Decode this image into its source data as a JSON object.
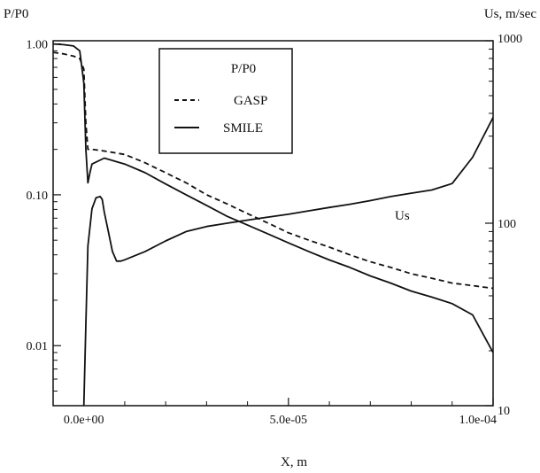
{
  "chart_data": {
    "type": "line",
    "left_axis": {
      "label": "P/P0",
      "scale": "log",
      "range": [
        0.004,
        1.05
      ],
      "ticks": [
        1.0,
        0.1,
        0.01
      ],
      "tick_labels": [
        "1.00",
        "0.10",
        "0.01"
      ]
    },
    "right_axis": {
      "label": "Us, m/sec",
      "scale": "log",
      "range": [
        10,
        1000
      ],
      "ticks": [
        1000,
        100,
        10
      ],
      "tick_labels": [
        "1000",
        "100",
        "10"
      ]
    },
    "x_axis": {
      "label": "X, m",
      "range": [
        -7.5e-06,
        0.0001
      ],
      "ticks": [
        0,
        5e-05,
        0.0001
      ],
      "tick_labels": [
        "0.0e+00",
        "5.0e-05",
        "1.0e-04"
      ]
    },
    "legend": {
      "placement": "top-center",
      "title": "P/P0",
      "entries": [
        {
          "label": "GASP",
          "style": "dashed"
        },
        {
          "label": "SMILE",
          "style": "solid"
        }
      ]
    },
    "annotations": [
      {
        "text": "Us",
        "x": 6e-05,
        "y_right": 160
      }
    ],
    "series": [
      {
        "name": "GASP",
        "axis": "left",
        "style": "dashed",
        "x": [
          -7.5e-06,
          -5e-06,
          -2.5e-06,
          -1e-06,
          0,
          5e-07,
          1e-06,
          1.5e-06,
          2e-06,
          5e-06,
          1e-05,
          1.5e-05,
          2e-05,
          2.5e-05,
          3e-05,
          3.5e-05,
          4e-05,
          4.5e-05,
          5e-05,
          5.5e-05,
          6e-05,
          6.5e-05,
          7e-05,
          7.5e-05,
          8e-05,
          8.5e-05,
          9e-05,
          9.5e-05,
          0.0001
        ],
        "y": [
          0.88,
          0.86,
          0.83,
          0.8,
          0.68,
          0.3,
          0.2,
          0.2,
          0.2,
          0.195,
          0.185,
          0.163,
          0.14,
          0.12,
          0.1,
          0.087,
          0.075,
          0.065,
          0.056,
          0.05,
          0.045,
          0.04,
          0.036,
          0.033,
          0.03,
          0.028,
          0.026,
          0.025,
          0.024
        ]
      },
      {
        "name": "SMILE",
        "axis": "left",
        "style": "solid",
        "x": [
          -7.5e-06,
          -5e-06,
          -2.5e-06,
          -1e-06,
          0,
          5e-07,
          1e-06,
          1.5e-06,
          2e-06,
          5e-06,
          1e-05,
          1.5e-05,
          2e-05,
          2.5e-05,
          3e-05,
          3.5e-05,
          4e-05,
          4.5e-05,
          5e-05,
          5.5e-05,
          6e-05,
          6.5e-05,
          7e-05,
          7.5e-05,
          8e-05,
          8.5e-05,
          9e-05,
          9.5e-05,
          0.0001
        ],
        "y": [
          1.0,
          0.99,
          0.97,
          0.9,
          0.55,
          0.2,
          0.12,
          0.14,
          0.16,
          0.175,
          0.16,
          0.14,
          0.118,
          0.1,
          0.085,
          0.072,
          0.063,
          0.055,
          0.048,
          0.042,
          0.037,
          0.033,
          0.029,
          0.026,
          0.023,
          0.021,
          0.019,
          0.016,
          0.009
        ]
      },
      {
        "name": "Us",
        "axis": "right",
        "style": "solid",
        "x": [
          0,
          5e-07,
          1e-06,
          2e-06,
          3e-06,
          4e-06,
          4.5e-06,
          5e-06,
          6e-06,
          7e-06,
          8e-06,
          9e-06,
          1e-05,
          1.5e-05,
          2e-05,
          2.5e-05,
          3e-05,
          3.5e-05,
          4e-05,
          4.5e-05,
          5e-05,
          5.5e-05,
          6e-05,
          6.5e-05,
          7e-05,
          7.5e-05,
          8e-05,
          8.5e-05,
          9e-05,
          9.5e-05,
          0.0001
        ],
        "y": [
          10,
          28,
          75,
          120,
          138,
          140,
          135,
          115,
          90,
          70,
          62,
          62,
          63,
          70,
          80,
          90,
          96,
          100,
          104,
          108,
          112,
          117,
          122,
          127,
          133,
          140,
          146,
          152,
          165,
          230,
          380
        ]
      }
    ]
  }
}
